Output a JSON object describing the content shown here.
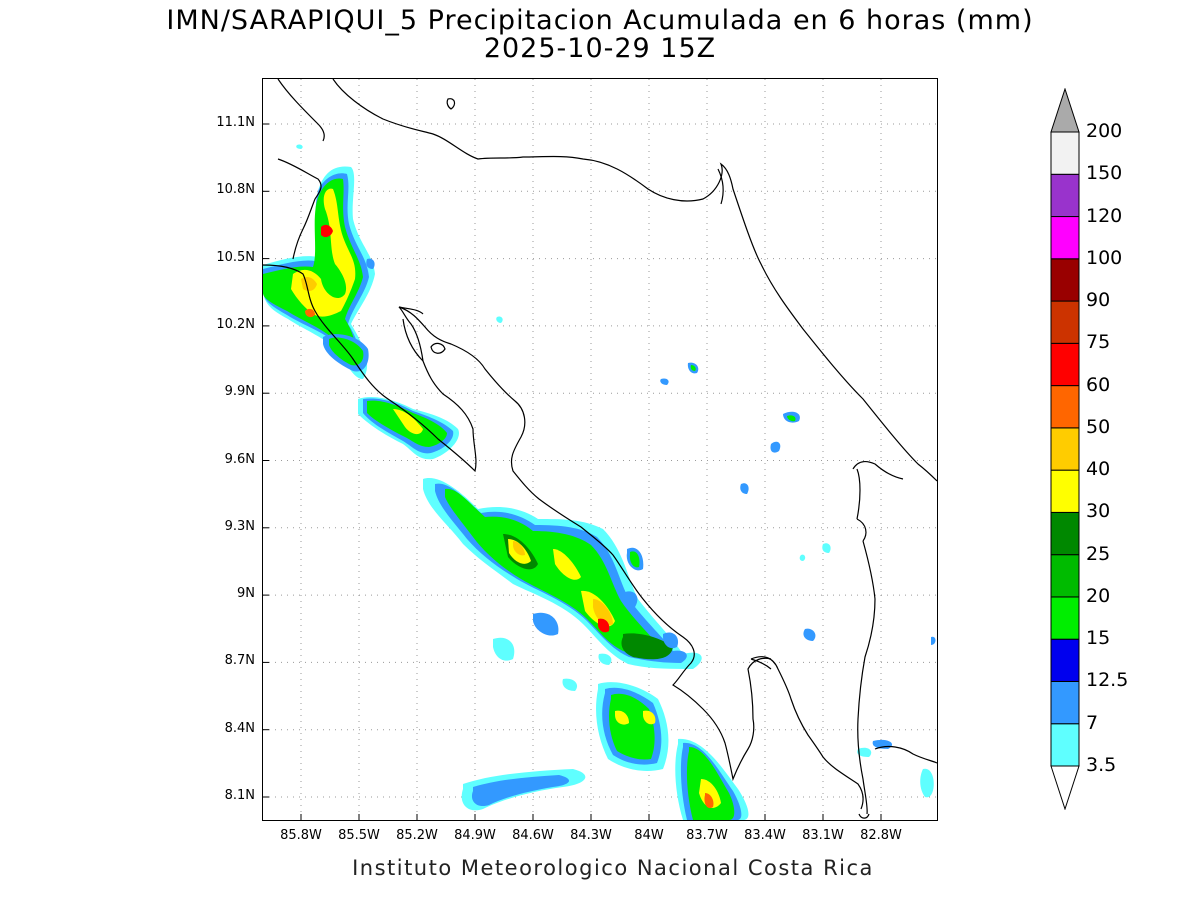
{
  "title": {
    "line1": "IMN/SARAPIQUI_5 Precipitacion Acumulada en 6 horas (mm)",
    "line2": "2025-10-29 15Z"
  },
  "footer": "Instituto Meteorologico Nacional Costa Rica",
  "map": {
    "lon_range": [
      -86.1,
      -82.6
    ],
    "lat_range": [
      8.0,
      11.3
    ],
    "grid": true,
    "y_ticks": [
      {
        "lat": 11.1,
        "label": "11.1N"
      },
      {
        "lat": 10.8,
        "label": "10.8N"
      },
      {
        "lat": 10.5,
        "label": "10.5N"
      },
      {
        "lat": 10.2,
        "label": "10.2N"
      },
      {
        "lat": 9.9,
        "label": "9.9N"
      },
      {
        "lat": 9.6,
        "label": "9.6N"
      },
      {
        "lat": 9.3,
        "label": "9.3N"
      },
      {
        "lat": 9.0,
        "label": "9N"
      },
      {
        "lat": 8.7,
        "label": "8.7N"
      },
      {
        "lat": 8.4,
        "label": "8.4N"
      },
      {
        "lat": 8.1,
        "label": "8.1N"
      }
    ],
    "x_ticks": [
      {
        "lon": -85.8,
        "label": "85.8W"
      },
      {
        "lon": -85.5,
        "label": "85.5W"
      },
      {
        "lon": -85.2,
        "label": "85.2W"
      },
      {
        "lon": -84.9,
        "label": "84.9W"
      },
      {
        "lon": -84.6,
        "label": "84.6W"
      },
      {
        "lon": -84.3,
        "label": "84.3W"
      },
      {
        "lon": -84.0,
        "label": "84W"
      },
      {
        "lon": -83.7,
        "label": "83.7W"
      },
      {
        "lon": -83.4,
        "label": "83.4W"
      },
      {
        "lon": -83.1,
        "label": "83.1W"
      },
      {
        "lon": -82.8,
        "label": "82.8W"
      }
    ]
  },
  "colorbar": {
    "levels": [
      "3.5",
      "7",
      "12.5",
      "15",
      "20",
      "25",
      "30",
      "40",
      "50",
      "60",
      "75",
      "90",
      "100",
      "120",
      "150",
      "200"
    ],
    "colors": [
      "#5fffff",
      "#3399ff",
      "#0000ee",
      "#00ee00",
      "#00bb00",
      "#008800",
      "#ffff00",
      "#ffcc00",
      "#ff6600",
      "#ff0000",
      "#cc3300",
      "#990000",
      "#ff00ff",
      "#9933cc",
      "#f2f2f2"
    ],
    "top_arrow_color": "#aaaaaa",
    "bottom_arrow_color": "#ffffff"
  }
}
